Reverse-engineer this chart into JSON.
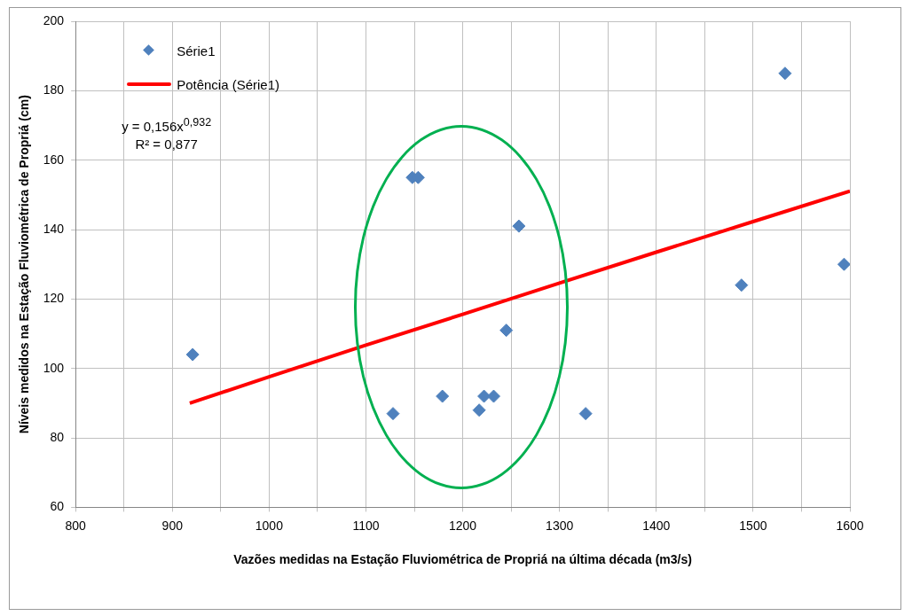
{
  "chart_data": {
    "type": "scatter",
    "xlabel": "Vazões medidas na Estação Fluviométrica de Propriá na última década (m3/s)",
    "ylabel": "Níveis medidos na Estação Fluviométrica de Propriá (cm)",
    "series": [
      {
        "name": "Série1",
        "color": "#4f81bd",
        "marker": "diamond",
        "x": [
          921,
          1128,
          1148,
          1154,
          1179,
          1217,
          1222,
          1232,
          1245,
          1258,
          1327,
          1488,
          1533,
          1594
        ],
        "values": [
          104,
          87,
          155,
          155,
          92,
          88,
          92,
          92,
          111,
          141,
          87,
          124,
          185,
          130
        ]
      },
      {
        "name": "Potência (Série1)",
        "type": "line",
        "color": "#ff0000",
        "marker": "none",
        "x": [
          918,
          1000,
          1100,
          1200,
          1300,
          1400,
          1500,
          1600
        ],
        "values": [
          90,
          97.6,
          106.7,
          115.6,
          124.6,
          133.5,
          142.3,
          151.1
        ]
      }
    ],
    "xlim": [
      800,
      1600
    ],
    "xticks": [
      800,
      {
        "value": 850,
        "label": null
      },
      900,
      {
        "value": 950,
        "label": null
      },
      1000,
      {
        "value": 1050,
        "label": null
      },
      1100,
      {
        "value": 1150,
        "label": null
      },
      1200,
      {
        "value": 1250,
        "label": null
      },
      1300,
      {
        "value": 1350,
        "label": null
      },
      1400,
      {
        "value": 1450,
        "label": null
      },
      1500,
      {
        "value": 1550,
        "label": null
      },
      1600
    ],
    "ylim": [
      60,
      200
    ],
    "yticks": [
      60,
      80,
      100,
      120,
      140,
      160,
      180,
      200
    ],
    "grid": true,
    "legend": "top left",
    "annotations": [
      "y = 0,156x$^{0,932}$",
      "R² = 0,877"
    ]
  }
}
